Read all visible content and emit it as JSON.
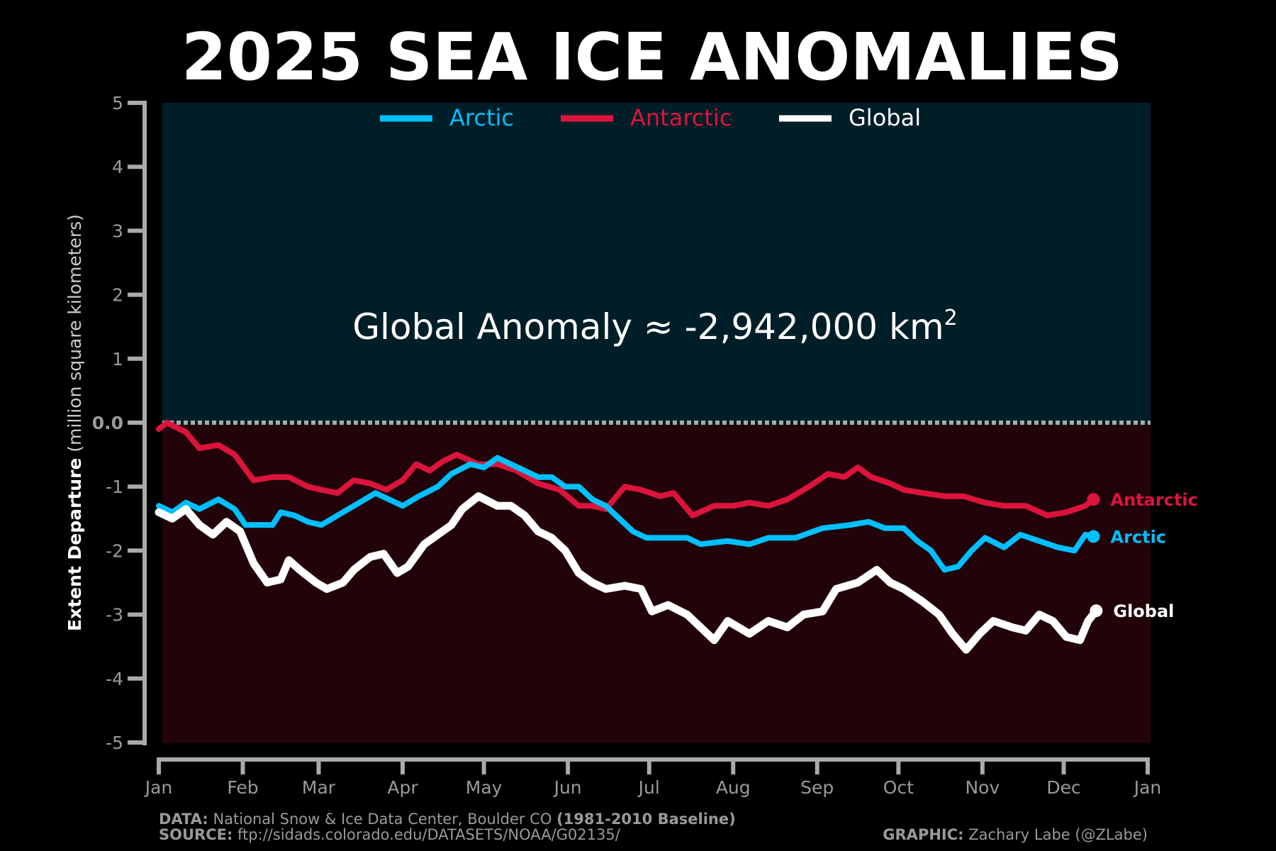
{
  "chart_data": {
    "type": "line",
    "title": "2025 SEA ICE ANOMALIES",
    "ylabel_bold": "Extent Departure",
    "ylabel_rest": " (million square kilometers)",
    "xlabel": "",
    "ylim": [
      -5,
      5
    ],
    "xlim_days": [
      0,
      365
    ],
    "yticks": [
      "5",
      "4",
      "3",
      "2",
      "1",
      "0.0",
      "-1",
      "-2",
      "-3",
      "-4",
      "-5"
    ],
    "ytick_values": [
      5,
      4,
      3,
      2,
      1,
      0,
      -1,
      -2,
      -3,
      -4,
      -5
    ],
    "xticks": [
      "Jan",
      "Feb",
      "Mar",
      "Apr",
      "May",
      "Jun",
      "Jul",
      "Aug",
      "Sep",
      "Oct",
      "Nov",
      "Dec",
      "Jan"
    ],
    "xtick_days": [
      0,
      31,
      59,
      90,
      120,
      151,
      181,
      212,
      243,
      273,
      304,
      334,
      365
    ],
    "annotation": "Global Anomaly ≈ -2,942,000 km",
    "annotation_sup": "2",
    "legend_position": "top-center",
    "series": [
      {
        "name": "Arctic",
        "color": "#00bfff",
        "end_label": "Arctic",
        "x": [
          0,
          5,
          10,
          15,
          22,
          28,
          32,
          36,
          42,
          45,
          50,
          55,
          60,
          66,
          72,
          80,
          85,
          90,
          96,
          103,
          108,
          115,
          120,
          125,
          130,
          135,
          140,
          145,
          150,
          155,
          160,
          165,
          170,
          175,
          180,
          188,
          195,
          200,
          210,
          218,
          225,
          235,
          245,
          255,
          262,
          268,
          275,
          280,
          285,
          290,
          295,
          300,
          305,
          312,
          318,
          325,
          332,
          338,
          342,
          345
        ],
        "y": [
          -1.3,
          -1.4,
          -1.25,
          -1.35,
          -1.2,
          -1.35,
          -1.6,
          -1.6,
          -1.6,
          -1.4,
          -1.45,
          -1.55,
          -1.6,
          -1.45,
          -1.3,
          -1.1,
          -1.2,
          -1.3,
          -1.15,
          -1.0,
          -0.8,
          -0.65,
          -0.7,
          -0.55,
          -0.65,
          -0.75,
          -0.85,
          -0.85,
          -1.0,
          -1.0,
          -1.2,
          -1.3,
          -1.5,
          -1.7,
          -1.8,
          -1.8,
          -1.8,
          -1.9,
          -1.85,
          -1.9,
          -1.8,
          -1.8,
          -1.65,
          -1.6,
          -1.55,
          -1.65,
          -1.65,
          -1.85,
          -2.0,
          -2.3,
          -2.25,
          -2.0,
          -1.8,
          -1.95,
          -1.75,
          -1.85,
          -1.95,
          -2.0,
          -1.75,
          -1.78
        ]
      },
      {
        "name": "Antarctic",
        "color": "#dc143c",
        "end_label": "Antarctic",
        "x": [
          0,
          3,
          10,
          15,
          22,
          28,
          35,
          42,
          48,
          55,
          60,
          66,
          72,
          78,
          84,
          90,
          95,
          100,
          105,
          110,
          118,
          125,
          132,
          140,
          148,
          155,
          160,
          165,
          172,
          178,
          185,
          190,
          197,
          205,
          212,
          218,
          225,
          232,
          240,
          247,
          253,
          258,
          263,
          270,
          275,
          282,
          290,
          297,
          305,
          312,
          320,
          328,
          335,
          342,
          345
        ],
        "y": [
          -0.1,
          0.0,
          -0.15,
          -0.4,
          -0.35,
          -0.5,
          -0.9,
          -0.85,
          -0.85,
          -1.0,
          -1.05,
          -1.1,
          -0.9,
          -0.95,
          -1.05,
          -0.9,
          -0.65,
          -0.75,
          -0.6,
          -0.5,
          -0.65,
          -0.65,
          -0.75,
          -0.95,
          -1.05,
          -1.3,
          -1.3,
          -1.35,
          -1.0,
          -1.05,
          -1.15,
          -1.1,
          -1.45,
          -1.3,
          -1.3,
          -1.25,
          -1.3,
          -1.2,
          -1.0,
          -0.8,
          -0.85,
          -0.7,
          -0.85,
          -0.95,
          -1.05,
          -1.1,
          -1.15,
          -1.15,
          -1.25,
          -1.3,
          -1.3,
          -1.45,
          -1.4,
          -1.3,
          -1.2
        ]
      },
      {
        "name": "Global",
        "color": "#ffffff",
        "end_label": "Global",
        "x": [
          0,
          5,
          10,
          15,
          20,
          25,
          30,
          35,
          40,
          45,
          48,
          52,
          58,
          62,
          68,
          72,
          78,
          83,
          88,
          92,
          98,
          103,
          108,
          112,
          118,
          125,
          130,
          135,
          140,
          145,
          150,
          155,
          160,
          165,
          172,
          178,
          182,
          188,
          195,
          200,
          205,
          210,
          218,
          225,
          232,
          238,
          245,
          250,
          258,
          265,
          270,
          275,
          282,
          288,
          293,
          298,
          303,
          308,
          315,
          320,
          325,
          330,
          335,
          340,
          343,
          346
        ],
        "y": [
          -1.4,
          -1.5,
          -1.35,
          -1.6,
          -1.75,
          -1.55,
          -1.7,
          -2.2,
          -2.5,
          -2.45,
          -2.15,
          -2.3,
          -2.5,
          -2.6,
          -2.5,
          -2.3,
          -2.1,
          -2.05,
          -2.35,
          -2.25,
          -1.9,
          -1.75,
          -1.6,
          -1.35,
          -1.15,
          -1.3,
          -1.3,
          -1.45,
          -1.7,
          -1.8,
          -2.0,
          -2.35,
          -2.5,
          -2.6,
          -2.55,
          -2.6,
          -2.95,
          -2.85,
          -3.0,
          -3.2,
          -3.4,
          -3.1,
          -3.3,
          -3.1,
          -3.2,
          -3.0,
          -2.95,
          -2.6,
          -2.5,
          -2.3,
          -2.5,
          -2.6,
          -2.8,
          -3.0,
          -3.3,
          -3.55,
          -3.3,
          -3.1,
          -3.2,
          -3.25,
          -3.0,
          -3.1,
          -3.35,
          -3.4,
          -3.1,
          -2.94
        ]
      }
    ]
  },
  "footer": {
    "data_label": "DATA:",
    "data_text": " National Snow & Ice Data Center, Boulder CO ",
    "baseline": "(1981-2010 Baseline)",
    "source_label": "SOURCE:",
    "source_text": " ftp://sidads.colorado.edu/DATASETS/NOAA/G02135/",
    "graphic_label": "GRAPHIC:",
    "graphic_text": " Zachary Labe (@ZLabe)"
  }
}
